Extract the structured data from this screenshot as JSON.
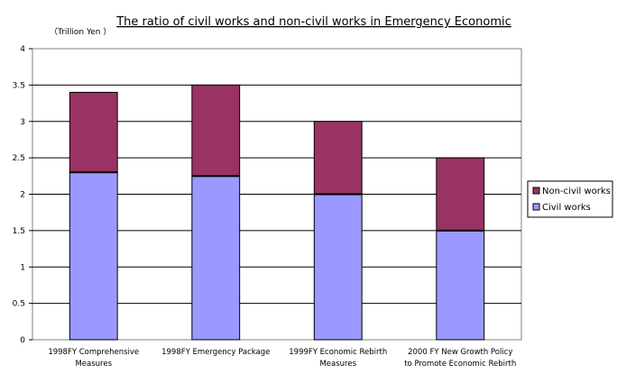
{
  "chart_data": {
    "type": "bar",
    "stacked": true,
    "title": "The ratio of civil works and non-civil works in Emergency Economic",
    "unit_label": "（Trillion Yen ）",
    "categories": [
      [
        "1998FY Comprehensive",
        "Measures"
      ],
      [
        "1998FY Emergency Package"
      ],
      [
        "1999FY Economic Rebirth",
        "Measures"
      ],
      [
        "2000 FY New Growth Policy",
        "to Promote Economic Rebirth"
      ]
    ],
    "series": [
      {
        "name": "Civil works",
        "color": "#9999ff",
        "values": [
          2.3,
          2.25,
          2.0,
          1.5
        ]
      },
      {
        "name": "Non-civil works",
        "color": "#993366",
        "values": [
          1.1,
          1.25,
          1.0,
          1.0
        ]
      }
    ],
    "legend_order": [
      "Non-civil works",
      "Civil works"
    ],
    "ylim": [
      0,
      4
    ],
    "yticks": [
      0,
      0.5,
      1,
      1.5,
      2,
      2.5,
      3,
      3.5,
      4
    ],
    "grid": true,
    "legend_position": "right"
  }
}
